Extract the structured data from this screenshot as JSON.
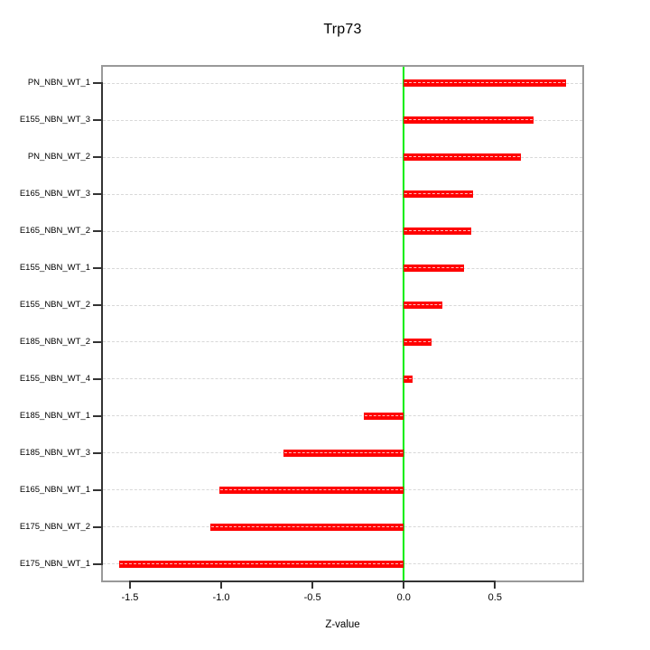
{
  "chart_data": {
    "type": "bar",
    "orientation": "horizontal",
    "title": "Trp73",
    "xlabel": "Z-value",
    "ylabel": "",
    "categories": [
      "PN_NBN_WT_1",
      "E155_NBN_WT_3",
      "PN_NBN_WT_2",
      "E165_NBN_WT_3",
      "E165_NBN_WT_2",
      "E155_NBN_WT_1",
      "E155_NBN_WT_2",
      "E185_NBN_WT_2",
      "E155_NBN_WT_4",
      "E185_NBN_WT_1",
      "E185_NBN_WT_3",
      "E165_NBN_WT_1",
      "E175_NBN_WT_2",
      "E175_NBN_WT_1"
    ],
    "values": [
      0.89,
      0.71,
      0.64,
      0.38,
      0.37,
      0.33,
      0.21,
      0.15,
      0.05,
      -0.22,
      -0.66,
      -1.01,
      -1.06,
      -1.56
    ],
    "x_ticks": [
      {
        "value": -1.5,
        "label": "-1.5"
      },
      {
        "value": -1.0,
        "label": "-1.0"
      },
      {
        "value": -0.5,
        "label": "-0.5"
      },
      {
        "value": 0.0,
        "label": "0.0"
      },
      {
        "value": 0.5,
        "label": "0.5"
      }
    ],
    "xlim": [
      -1.658,
      0.988
    ],
    "zero_reference_line": 0,
    "legend": "none",
    "grid": "dashed-horizontal-per-category",
    "colors": {
      "bar": "#ff0000",
      "bar_center_dash": "#ffffff",
      "zero_line": "#00ee00",
      "box_border": "#999999",
      "axis_line": "#333333",
      "gridline": "#d8d8d8",
      "text": "#000000",
      "background": "#ffffff"
    }
  }
}
